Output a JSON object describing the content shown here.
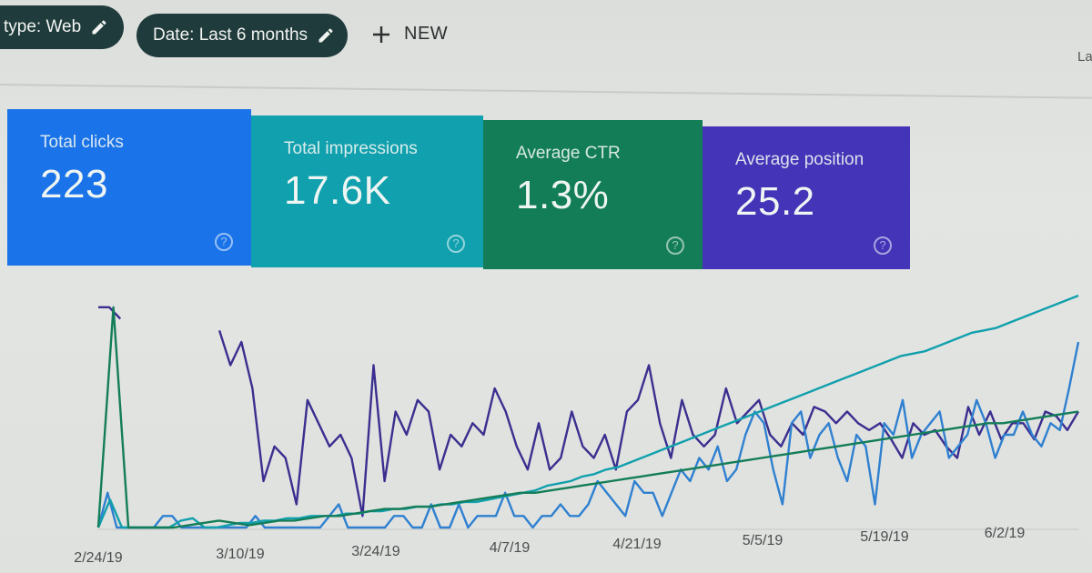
{
  "filters": {
    "type_chip": "type: Web",
    "date_chip": "Date: Last 6 months",
    "new_button": "NEW"
  },
  "corner_text": "La",
  "cards": [
    {
      "label": "Total clicks",
      "value": "223",
      "color": "#1a73e8"
    },
    {
      "label": "Total impressions",
      "value": "17.6K",
      "color": "#11a0ad"
    },
    {
      "label": "Average CTR",
      "value": "1.3%",
      "color": "#137d58"
    },
    {
      "label": "Average position",
      "value": "25.2",
      "color": "#4334b8"
    }
  ],
  "chart_data": {
    "type": "line",
    "x_ticks": [
      "2/24/19",
      "3/10/19",
      "3/24/19",
      "4/7/19",
      "4/21/19",
      "5/5/19",
      "5/19/19",
      "6/2/19"
    ],
    "series": [
      {
        "color": "#3a2f8f",
        "values": [
          95,
          95,
          90,
          null,
          null,
          null,
          null,
          null,
          null,
          null,
          null,
          85,
          70,
          80,
          60,
          20,
          35,
          30,
          10,
          55,
          45,
          35,
          40,
          30,
          5,
          70,
          20,
          50,
          40,
          55,
          50,
          25,
          40,
          35,
          45,
          40,
          60,
          50,
          35,
          25,
          45,
          25,
          30,
          50,
          35,
          30,
          40,
          25,
          50,
          55,
          70,
          45,
          30,
          55,
          40,
          35,
          40,
          60,
          45,
          50,
          55,
          40,
          35,
          45,
          40,
          52,
          50,
          45,
          50,
          45,
          42,
          45,
          38,
          30,
          45,
          40,
          42,
          35,
          30,
          52,
          40,
          50,
          38,
          45,
          45,
          38,
          50,
          48,
          42,
          50
        ]
      },
      {
        "color": "#2f80d0",
        "values": [
          0,
          15,
          0,
          0,
          0,
          0,
          0,
          5,
          5,
          0,
          0,
          0,
          0,
          0,
          0,
          0,
          0,
          5,
          0,
          0,
          0,
          0,
          0,
          0,
          0,
          5,
          10,
          0,
          0,
          0,
          0,
          0,
          5,
          5,
          0,
          0,
          10,
          0,
          0,
          10,
          0,
          5,
          5,
          5,
          15,
          5,
          5,
          0,
          5,
          5,
          10,
          5,
          5,
          10,
          20,
          15,
          10,
          5,
          20,
          15,
          15,
          5,
          15,
          25,
          20,
          30,
          25,
          35,
          20,
          25,
          40,
          50,
          45,
          25,
          10,
          45,
          50,
          30,
          40,
          45,
          30,
          20,
          40,
          35,
          10,
          45,
          40,
          55,
          30,
          40,
          45,
          50,
          30,
          35,
          40,
          55,
          45,
          30,
          40,
          40,
          50,
          40,
          35,
          45,
          42,
          60,
          80
        ]
      },
      {
        "color": "#11a0ad",
        "values": [
          0,
          12,
          0,
          0,
          0,
          0,
          0,
          3,
          4,
          0,
          0,
          1,
          2,
          2,
          3,
          3,
          4,
          4,
          5,
          5,
          5,
          6,
          6,
          7,
          7,
          8,
          8,
          9,
          9,
          10,
          10,
          11,
          11,
          12,
          13,
          14,
          15,
          16,
          18,
          19,
          20,
          22,
          23,
          25,
          26,
          28,
          30,
          32,
          34,
          36,
          38,
          40,
          42,
          44,
          46,
          48,
          50,
          52,
          54,
          56,
          58,
          60,
          62,
          64,
          66,
          68,
          70,
          72,
          74,
          75,
          76,
          78,
          80,
          82,
          84,
          85,
          86,
          88,
          90,
          92,
          94,
          96,
          98,
          100
        ]
      },
      {
        "color": "#137d58",
        "values": [
          0,
          95,
          0,
          0,
          0,
          0,
          1,
          2,
          3,
          2,
          1,
          2,
          3,
          3,
          4,
          5,
          5,
          6,
          7,
          8,
          8,
          9,
          9,
          10,
          11,
          12,
          13,
          14,
          15,
          15,
          16,
          17,
          18,
          19,
          20,
          21,
          22,
          23,
          24,
          25,
          26,
          27,
          28,
          29,
          30,
          31,
          32,
          33,
          34,
          35,
          36,
          37,
          38,
          39,
          40,
          41,
          42,
          43,
          44,
          45,
          45,
          46,
          47,
          48,
          49,
          50
        ]
      }
    ]
  }
}
